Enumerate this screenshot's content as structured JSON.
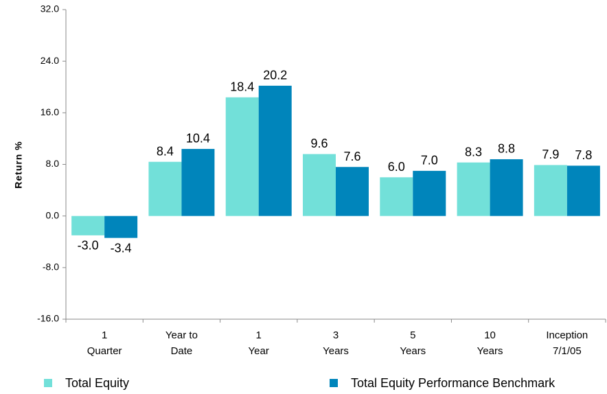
{
  "chart_data": {
    "type": "bar",
    "y_label": "Return %",
    "categories": [
      "1\nQuarter",
      "Year to\nDate",
      "1\nYear",
      "3\nYears",
      "5\nYears",
      "10\nYears",
      "Inception\n7/1/05"
    ],
    "series": [
      {
        "name": "Total Equity",
        "color": "#72e0d9",
        "values": [
          -3.0,
          8.4,
          18.4,
          9.6,
          6.0,
          8.3,
          7.9
        ],
        "value_labels": [
          "-3.0",
          "8.4",
          "18.4",
          "9.6",
          "6.0",
          "8.3",
          "7.9"
        ]
      },
      {
        "name": "Total Equity Performance Benchmark",
        "color": "#0085bb",
        "values": [
          -3.4,
          10.4,
          20.2,
          7.6,
          7.0,
          8.8,
          7.8
        ],
        "value_labels": [
          "-3.4",
          "10.4",
          "20.2",
          "7.6",
          "7.0",
          "8.8",
          "7.8"
        ]
      }
    ],
    "ylim": [
      -16,
      32
    ],
    "yticks": [
      {
        "value": -16,
        "label": "-16.0"
      },
      {
        "value": -8,
        "label": "-8.0"
      },
      {
        "value": 0,
        "label": "0.0"
      },
      {
        "value": 8,
        "label": "8.0"
      },
      {
        "value": 16,
        "label": "16.0"
      },
      {
        "value": 24,
        "label": "24.0"
      },
      {
        "value": 32,
        "label": "32.0"
      }
    ],
    "grid": false,
    "legend": "bottom"
  }
}
